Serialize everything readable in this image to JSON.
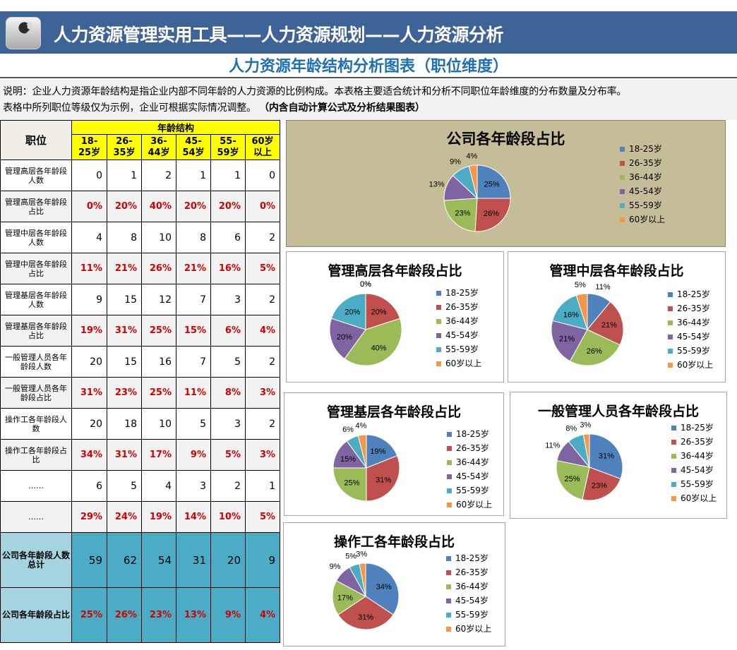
{
  "header": {
    "title": "人力资源管理实用工具——人力资源规划——人力资源分析",
    "icon": "wrench-icon"
  },
  "subtitle": "人力资源年龄结构分析图表（职位维度）",
  "description": {
    "line1": "说明：企业人力资源年龄结构是指企业内部不同年龄的人力资源的比例构成。本表格主要适合统计和分析不同职位年龄维度的分布数量及分布率。",
    "line2a": "表格中所列职位等级仅为示例，企业可根据实际情况调整。",
    "line2b": "（内含自动计算公式及分析结果图表）"
  },
  "table": {
    "position_header": "职位",
    "age_header": "年龄结构",
    "bands": [
      "18-\n25岁",
      "26-\n35岁",
      "36-\n44岁",
      "45-\n54岁",
      "55-\n59岁",
      "60岁\n以上"
    ],
    "rows": [
      {
        "label": "管理高层各年龄段人数",
        "values": [
          "0",
          "1",
          "2",
          "1",
          "1",
          "0"
        ],
        "kind": "count"
      },
      {
        "label": "管理高层各年龄段占比",
        "values": [
          "0%",
          "20%",
          "40%",
          "20%",
          "20%",
          "0%"
        ],
        "kind": "pct"
      },
      {
        "label": "管理中层各年龄段人数",
        "values": [
          "4",
          "8",
          "10",
          "8",
          "6",
          "2"
        ],
        "kind": "count"
      },
      {
        "label": "管理中层各年龄段占比",
        "values": [
          "11%",
          "21%",
          "26%",
          "21%",
          "16%",
          "5%"
        ],
        "kind": "pct"
      },
      {
        "label": "管理基层各年龄段人数",
        "values": [
          "9",
          "15",
          "12",
          "7",
          "3",
          "2"
        ],
        "kind": "count"
      },
      {
        "label": "管理基层各年龄段占比",
        "values": [
          "19%",
          "31%",
          "25%",
          "15%",
          "6%",
          "4%"
        ],
        "kind": "pct"
      },
      {
        "label": "一般管理人员各年龄段人数",
        "values": [
          "20",
          "15",
          "16",
          "7",
          "5",
          "2"
        ],
        "kind": "count"
      },
      {
        "label": "一般管理人员各年龄段占比",
        "values": [
          "31%",
          "23%",
          "25%",
          "11%",
          "8%",
          "3%"
        ],
        "kind": "pct"
      },
      {
        "label": "操作工各年龄段人数",
        "values": [
          "20",
          "18",
          "10",
          "5",
          "3",
          "2"
        ],
        "kind": "count"
      },
      {
        "label": "操作工各年龄段占比",
        "values": [
          "34%",
          "31%",
          "17%",
          "9%",
          "5%",
          "3%"
        ],
        "kind": "pct"
      },
      {
        "label": "……",
        "values": [
          "6",
          "5",
          "4",
          "3",
          "2",
          "1"
        ],
        "kind": "count"
      },
      {
        "label": "……",
        "values": [
          "29%",
          "24%",
          "19%",
          "14%",
          "10%",
          "5%"
        ],
        "kind": "pct"
      }
    ],
    "summary": [
      {
        "label": "公司各年龄段人数总计",
        "values": [
          "59",
          "62",
          "54",
          "31",
          "20",
          "9"
        ],
        "kind": "count"
      },
      {
        "label": "公司各年龄段占比",
        "values": [
          "25%",
          "26%",
          "23%",
          "13%",
          "9%",
          "4%"
        ],
        "kind": "pct"
      }
    ]
  },
  "colors": [
    "#4f81bd",
    "#c0504d",
    "#9bbb59",
    "#8064a2",
    "#4bacc6",
    "#f79646"
  ],
  "chart_data": [
    {
      "type": "pie",
      "title": "公司各年龄段占比",
      "categories": [
        "18-25岁",
        "26-35岁",
        "36-44岁",
        "45-54岁",
        "55-59岁",
        "60岁以上"
      ],
      "values": [
        25,
        26,
        23,
        13,
        9,
        4
      ],
      "legend": "right"
    },
    {
      "type": "pie",
      "title": "管理高层各年龄段占比",
      "categories": [
        "18-25岁",
        "26-35岁",
        "36-44岁",
        "45-54岁",
        "55-59岁",
        "60岁以上"
      ],
      "values": [
        0,
        20,
        40,
        20,
        20,
        0
      ],
      "legend": "right"
    },
    {
      "type": "pie",
      "title": "管理中层各年龄段占比",
      "categories": [
        "18-25岁",
        "26-35岁",
        "36-44岁",
        "45-54岁",
        "55-59岁",
        "60岁以上"
      ],
      "values": [
        11,
        21,
        26,
        21,
        16,
        5
      ],
      "legend": "right"
    },
    {
      "type": "pie",
      "title": "管理基层各年龄段占比",
      "categories": [
        "18-25岁",
        "26-35岁",
        "36-44岁",
        "45-54岁",
        "55-59岁",
        "60岁以上"
      ],
      "values": [
        19,
        31,
        25,
        15,
        6,
        4
      ],
      "legend": "right"
    },
    {
      "type": "pie",
      "title": "一般管理人员各年龄段占比",
      "categories": [
        "18-25岁",
        "26-35岁",
        "36-44岁",
        "45-54岁",
        "55-59岁",
        "60岁以上"
      ],
      "values": [
        31,
        23,
        25,
        11,
        8,
        3
      ],
      "legend": "right"
    },
    {
      "type": "pie",
      "title": "操作工各年龄段占比",
      "categories": [
        "18-25岁",
        "26-35岁",
        "36-44岁",
        "45-54岁",
        "55-59岁",
        "60岁以上"
      ],
      "values": [
        34,
        31,
        17,
        9,
        5,
        3
      ],
      "legend": "right"
    }
  ]
}
